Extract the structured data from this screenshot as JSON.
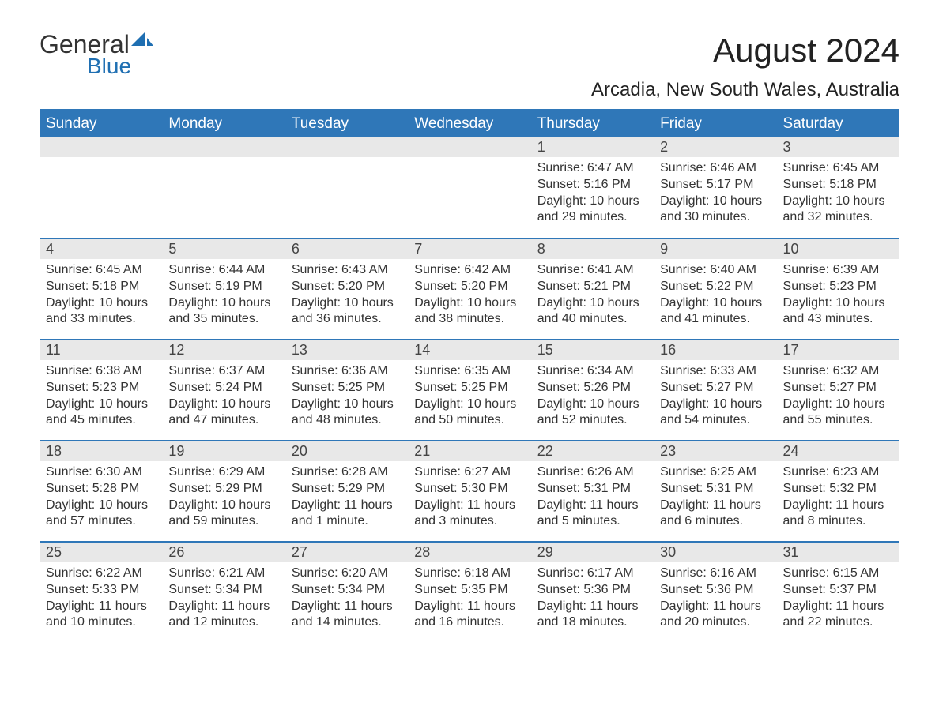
{
  "logo": {
    "text1": "General",
    "text2": "Blue"
  },
  "title": "August 2024",
  "location": "Arcadia, New South Wales, Australia",
  "colors": {
    "header_bg": "#2f77b8",
    "header_text": "#ffffff",
    "daynum_bg": "#e8e8e8",
    "row_border": "#2f77b8",
    "logo_blue": "#1f6fb2",
    "body_text": "#333333",
    "background": "#ffffff"
  },
  "fonts": {
    "title_size_pt": 32,
    "location_size_pt": 18,
    "header_size_pt": 14,
    "daynum_size_pt": 14,
    "body_size_pt": 12
  },
  "weekdays": [
    "Sunday",
    "Monday",
    "Tuesday",
    "Wednesday",
    "Thursday",
    "Friday",
    "Saturday"
  ],
  "weeks": [
    [
      null,
      null,
      null,
      null,
      {
        "n": "1",
        "sunrise": "Sunrise: 6:47 AM",
        "sunset": "Sunset: 5:16 PM",
        "daylight": "Daylight: 10 hours and 29 minutes."
      },
      {
        "n": "2",
        "sunrise": "Sunrise: 6:46 AM",
        "sunset": "Sunset: 5:17 PM",
        "daylight": "Daylight: 10 hours and 30 minutes."
      },
      {
        "n": "3",
        "sunrise": "Sunrise: 6:45 AM",
        "sunset": "Sunset: 5:18 PM",
        "daylight": "Daylight: 10 hours and 32 minutes."
      }
    ],
    [
      {
        "n": "4",
        "sunrise": "Sunrise: 6:45 AM",
        "sunset": "Sunset: 5:18 PM",
        "daylight": "Daylight: 10 hours and 33 minutes."
      },
      {
        "n": "5",
        "sunrise": "Sunrise: 6:44 AM",
        "sunset": "Sunset: 5:19 PM",
        "daylight": "Daylight: 10 hours and 35 minutes."
      },
      {
        "n": "6",
        "sunrise": "Sunrise: 6:43 AM",
        "sunset": "Sunset: 5:20 PM",
        "daylight": "Daylight: 10 hours and 36 minutes."
      },
      {
        "n": "7",
        "sunrise": "Sunrise: 6:42 AM",
        "sunset": "Sunset: 5:20 PM",
        "daylight": "Daylight: 10 hours and 38 minutes."
      },
      {
        "n": "8",
        "sunrise": "Sunrise: 6:41 AM",
        "sunset": "Sunset: 5:21 PM",
        "daylight": "Daylight: 10 hours and 40 minutes."
      },
      {
        "n": "9",
        "sunrise": "Sunrise: 6:40 AM",
        "sunset": "Sunset: 5:22 PM",
        "daylight": "Daylight: 10 hours and 41 minutes."
      },
      {
        "n": "10",
        "sunrise": "Sunrise: 6:39 AM",
        "sunset": "Sunset: 5:23 PM",
        "daylight": "Daylight: 10 hours and 43 minutes."
      }
    ],
    [
      {
        "n": "11",
        "sunrise": "Sunrise: 6:38 AM",
        "sunset": "Sunset: 5:23 PM",
        "daylight": "Daylight: 10 hours and 45 minutes."
      },
      {
        "n": "12",
        "sunrise": "Sunrise: 6:37 AM",
        "sunset": "Sunset: 5:24 PM",
        "daylight": "Daylight: 10 hours and 47 minutes."
      },
      {
        "n": "13",
        "sunrise": "Sunrise: 6:36 AM",
        "sunset": "Sunset: 5:25 PM",
        "daylight": "Daylight: 10 hours and 48 minutes."
      },
      {
        "n": "14",
        "sunrise": "Sunrise: 6:35 AM",
        "sunset": "Sunset: 5:25 PM",
        "daylight": "Daylight: 10 hours and 50 minutes."
      },
      {
        "n": "15",
        "sunrise": "Sunrise: 6:34 AM",
        "sunset": "Sunset: 5:26 PM",
        "daylight": "Daylight: 10 hours and 52 minutes."
      },
      {
        "n": "16",
        "sunrise": "Sunrise: 6:33 AM",
        "sunset": "Sunset: 5:27 PM",
        "daylight": "Daylight: 10 hours and 54 minutes."
      },
      {
        "n": "17",
        "sunrise": "Sunrise: 6:32 AM",
        "sunset": "Sunset: 5:27 PM",
        "daylight": "Daylight: 10 hours and 55 minutes."
      }
    ],
    [
      {
        "n": "18",
        "sunrise": "Sunrise: 6:30 AM",
        "sunset": "Sunset: 5:28 PM",
        "daylight": "Daylight: 10 hours and 57 minutes."
      },
      {
        "n": "19",
        "sunrise": "Sunrise: 6:29 AM",
        "sunset": "Sunset: 5:29 PM",
        "daylight": "Daylight: 10 hours and 59 minutes."
      },
      {
        "n": "20",
        "sunrise": "Sunrise: 6:28 AM",
        "sunset": "Sunset: 5:29 PM",
        "daylight": "Daylight: 11 hours and 1 minute."
      },
      {
        "n": "21",
        "sunrise": "Sunrise: 6:27 AM",
        "sunset": "Sunset: 5:30 PM",
        "daylight": "Daylight: 11 hours and 3 minutes."
      },
      {
        "n": "22",
        "sunrise": "Sunrise: 6:26 AM",
        "sunset": "Sunset: 5:31 PM",
        "daylight": "Daylight: 11 hours and 5 minutes."
      },
      {
        "n": "23",
        "sunrise": "Sunrise: 6:25 AM",
        "sunset": "Sunset: 5:31 PM",
        "daylight": "Daylight: 11 hours and 6 minutes."
      },
      {
        "n": "24",
        "sunrise": "Sunrise: 6:23 AM",
        "sunset": "Sunset: 5:32 PM",
        "daylight": "Daylight: 11 hours and 8 minutes."
      }
    ],
    [
      {
        "n": "25",
        "sunrise": "Sunrise: 6:22 AM",
        "sunset": "Sunset: 5:33 PM",
        "daylight": "Daylight: 11 hours and 10 minutes."
      },
      {
        "n": "26",
        "sunrise": "Sunrise: 6:21 AM",
        "sunset": "Sunset: 5:34 PM",
        "daylight": "Daylight: 11 hours and 12 minutes."
      },
      {
        "n": "27",
        "sunrise": "Sunrise: 6:20 AM",
        "sunset": "Sunset: 5:34 PM",
        "daylight": "Daylight: 11 hours and 14 minutes."
      },
      {
        "n": "28",
        "sunrise": "Sunrise: 6:18 AM",
        "sunset": "Sunset: 5:35 PM",
        "daylight": "Daylight: 11 hours and 16 minutes."
      },
      {
        "n": "29",
        "sunrise": "Sunrise: 6:17 AM",
        "sunset": "Sunset: 5:36 PM",
        "daylight": "Daylight: 11 hours and 18 minutes."
      },
      {
        "n": "30",
        "sunrise": "Sunrise: 6:16 AM",
        "sunset": "Sunset: 5:36 PM",
        "daylight": "Daylight: 11 hours and 20 minutes."
      },
      {
        "n": "31",
        "sunrise": "Sunrise: 6:15 AM",
        "sunset": "Sunset: 5:37 PM",
        "daylight": "Daylight: 11 hours and 22 minutes."
      }
    ]
  ]
}
